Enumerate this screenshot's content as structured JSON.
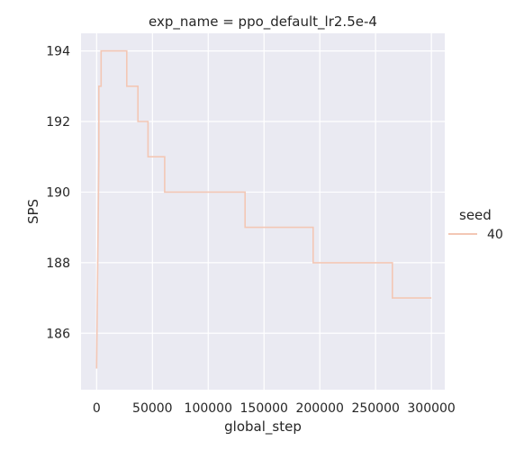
{
  "chart_data": {
    "type": "line",
    "title": "exp_name = ppo_default_lr2.5e-4",
    "xlabel": "global_step",
    "ylabel": "SPS",
    "xlim": [
      -14000,
      312000
    ],
    "ylim": [
      184.4,
      194.5
    ],
    "xticks": [
      0,
      50000,
      100000,
      150000,
      200000,
      250000,
      300000
    ],
    "xtick_labels": [
      "0",
      "50000",
      "100000",
      "150000",
      "200000",
      "250000",
      "300000"
    ],
    "yticks": [
      186,
      188,
      190,
      192,
      194
    ],
    "ytick_labels": [
      "186",
      "188",
      "190",
      "192",
      "194"
    ],
    "grid": true,
    "background": "#eaeaf2",
    "legend": {
      "title": "seed",
      "placement": "right",
      "entries": [
        "40"
      ]
    },
    "series": [
      {
        "name": "40",
        "color": "#f3c7b5",
        "x": [
          0,
          2000,
          2000,
          4000,
          4000,
          27000,
          27000,
          37000,
          37000,
          46000,
          46000,
          61000,
          61000,
          133000,
          133000,
          194000,
          194000,
          265000,
          265000,
          300000
        ],
        "y": [
          185,
          191,
          193,
          193,
          194,
          194,
          193,
          193,
          192,
          192,
          191,
          191,
          190,
          190,
          189,
          189,
          188,
          188,
          187,
          187
        ]
      }
    ]
  }
}
